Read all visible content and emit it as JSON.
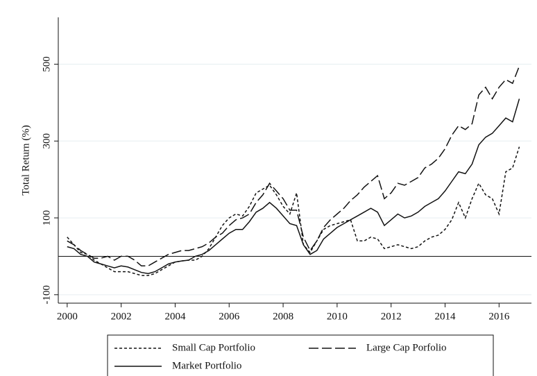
{
  "chart_data": {
    "type": "line",
    "ylabel": "Total Return (%)",
    "x": [
      2000,
      2000.25,
      2000.5,
      2000.75,
      2001,
      2001.25,
      2001.5,
      2001.75,
      2002,
      2002.25,
      2002.5,
      2002.75,
      2003,
      2003.25,
      2003.5,
      2003.75,
      2004,
      2004.25,
      2004.5,
      2004.75,
      2005,
      2005.25,
      2005.5,
      2005.75,
      2006,
      2006.25,
      2006.5,
      2006.75,
      2007,
      2007.25,
      2007.5,
      2007.75,
      2008,
      2008.25,
      2008.5,
      2008.75,
      2009,
      2009.25,
      2009.5,
      2009.75,
      2010,
      2010.25,
      2010.5,
      2010.75,
      2011,
      2011.25,
      2011.5,
      2011.75,
      2012,
      2012.25,
      2012.5,
      2012.75,
      2013,
      2013.25,
      2013.5,
      2013.75,
      2014,
      2014.25,
      2014.5,
      2014.75,
      2015,
      2015.25,
      2015.5,
      2015.75,
      2016,
      2016.25,
      2016.5,
      2016.75
    ],
    "series": [
      {
        "name": "Small Cap Portfolio",
        "color": "#111111",
        "dash": "short",
        "values": [
          50,
          30,
          10,
          5,
          -10,
          -20,
          -30,
          -40,
          -40,
          -40,
          -45,
          -50,
          -50,
          -45,
          -35,
          -25,
          -15,
          -12,
          -10,
          -10,
          0,
          20,
          50,
          80,
          100,
          110,
          105,
          130,
          165,
          175,
          185,
          160,
          130,
          110,
          165,
          30,
          10,
          40,
          70,
          80,
          85,
          90,
          95,
          40,
          40,
          50,
          45,
          20,
          25,
          30,
          25,
          20,
          25,
          40,
          50,
          55,
          70,
          95,
          140,
          100,
          150,
          190,
          160,
          150,
          110,
          220,
          230,
          285
        ]
      },
      {
        "name": "Large Cap Porfolio",
        "color": "#111111",
        "dash": "long",
        "values": [
          40,
          30,
          15,
          5,
          -5,
          -5,
          0,
          -10,
          0,
          0,
          -10,
          -25,
          -25,
          -15,
          -5,
          5,
          10,
          15,
          15,
          20,
          25,
          35,
          50,
          60,
          80,
          95,
          100,
          110,
          140,
          160,
          190,
          170,
          150,
          120,
          120,
          50,
          15,
          40,
          75,
          95,
          110,
          125,
          145,
          160,
          180,
          195,
          210,
          150,
          165,
          190,
          185,
          195,
          205,
          230,
          240,
          255,
          280,
          315,
          340,
          330,
          345,
          420,
          440,
          410,
          440,
          460,
          450,
          495
        ]
      },
      {
        "name": "Market Portfolio",
        "color": "#111111",
        "dash": "solid",
        "values": [
          25,
          20,
          5,
          0,
          -15,
          -20,
          -25,
          -30,
          -25,
          -28,
          -35,
          -42,
          -45,
          -40,
          -30,
          -20,
          -15,
          -12,
          -10,
          0,
          5,
          15,
          30,
          45,
          60,
          70,
          70,
          90,
          115,
          125,
          140,
          125,
          105,
          85,
          80,
          30,
          5,
          15,
          45,
          60,
          75,
          85,
          95,
          105,
          115,
          125,
          115,
          80,
          95,
          110,
          100,
          105,
          115,
          130,
          140,
          150,
          170,
          195,
          220,
          215,
          240,
          290,
          310,
          320,
          340,
          360,
          350,
          410
        ]
      }
    ],
    "xlim": [
      1999.67,
      2017.2
    ],
    "xticks": [
      2000,
      2002,
      2004,
      2006,
      2008,
      2010,
      2012,
      2014,
      2016
    ],
    "ylim": [
      -122,
      622
    ],
    "yticks": [
      -100,
      100,
      300,
      500
    ],
    "hline": 0,
    "grid": true,
    "legend": "bottom"
  }
}
